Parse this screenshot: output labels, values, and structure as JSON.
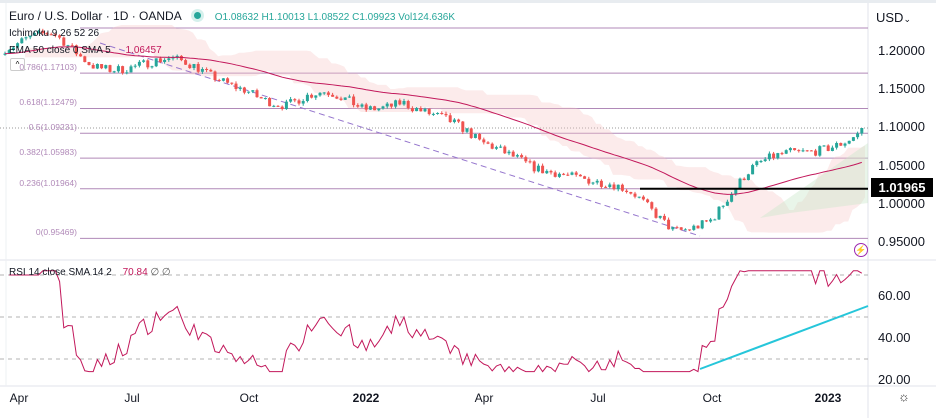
{
  "header": {
    "symbol": "Euro / U.S. Dollar · 1D · OANDA",
    "open": "O1.08632",
    "high": "H1.10013",
    "low": "L1.08522",
    "close": "C1.09923",
    "volume": "Vol124.636K",
    "status_color": "#26a69a"
  },
  "indicators": {
    "ichimoku": "Ichimoku 9 26 52 26",
    "ema": "EMA 50 close 0 SMA 5",
    "ema_value": "1.06457",
    "rsi": "RSI 14 close SMA 14 2",
    "rsi_value": "70.84",
    "rsi_extra": "∅ ∅"
  },
  "price_axis": {
    "currency": "USD",
    "ticks": [
      "1.20000",
      "1.15000",
      "1.10000",
      "1.05000",
      "1.00000",
      "0.95000"
    ],
    "marker": "1.01965"
  },
  "rsi_axis": {
    "ticks": [
      "60.00",
      "40.00",
      "20.00"
    ]
  },
  "time_axis": [
    "Apr",
    "Jul",
    "Oct",
    "2022",
    "Apr",
    "Jul",
    "Oct",
    "2023"
  ],
  "fib": [
    {
      "label": "0.786(1.17103)",
      "value": 1.17103
    },
    {
      "label": "0.618(1.12479)",
      "value": 1.12479
    },
    {
      "label": "0.5(1.09231)",
      "value": 1.09231
    },
    {
      "label": "0.382(1.05983)",
      "value": 1.05983
    },
    {
      "label": "0.236(1.01964)",
      "value": 1.01964
    },
    {
      "label": "0(0.95469)",
      "value": 0.95469
    }
  ],
  "chart_data": {
    "type": "candlestick",
    "title": "Euro / U.S. Dollar · 1D · OANDA",
    "ylim": [
      0.93,
      1.23
    ],
    "monthly_close": {
      "x": [
        "2021-04",
        "2021-05",
        "2021-06",
        "2021-07",
        "2021-08",
        "2021-09",
        "2021-10",
        "2021-11",
        "2021-12",
        "2022-01",
        "2022-02",
        "2022-03",
        "2022-04",
        "2022-05",
        "2022-06",
        "2022-07",
        "2022-08",
        "2022-09",
        "2022-10",
        "2022-11",
        "2022-12",
        "2023-01",
        "2023-02"
      ],
      "y": [
        1.2,
        1.215,
        1.19,
        1.185,
        1.18,
        1.165,
        1.16,
        1.13,
        1.135,
        1.125,
        1.145,
        1.11,
        1.07,
        1.065,
        1.05,
        1.02,
        1.005,
        0.975,
        0.985,
        1.035,
        1.065,
        1.085,
        1.099
      ]
    },
    "horizontal_line": 1.01965,
    "rsi": {
      "overbought": 70,
      "oversold": 30,
      "last": 70.84,
      "ylim": [
        15,
        80
      ]
    },
    "colors": {
      "up": "#26a69a",
      "down": "#ef5350",
      "ema": "#c2185b",
      "rsi": "#c2185b",
      "rsi_trend": "#26c6da",
      "fib": "#b089b8"
    }
  }
}
